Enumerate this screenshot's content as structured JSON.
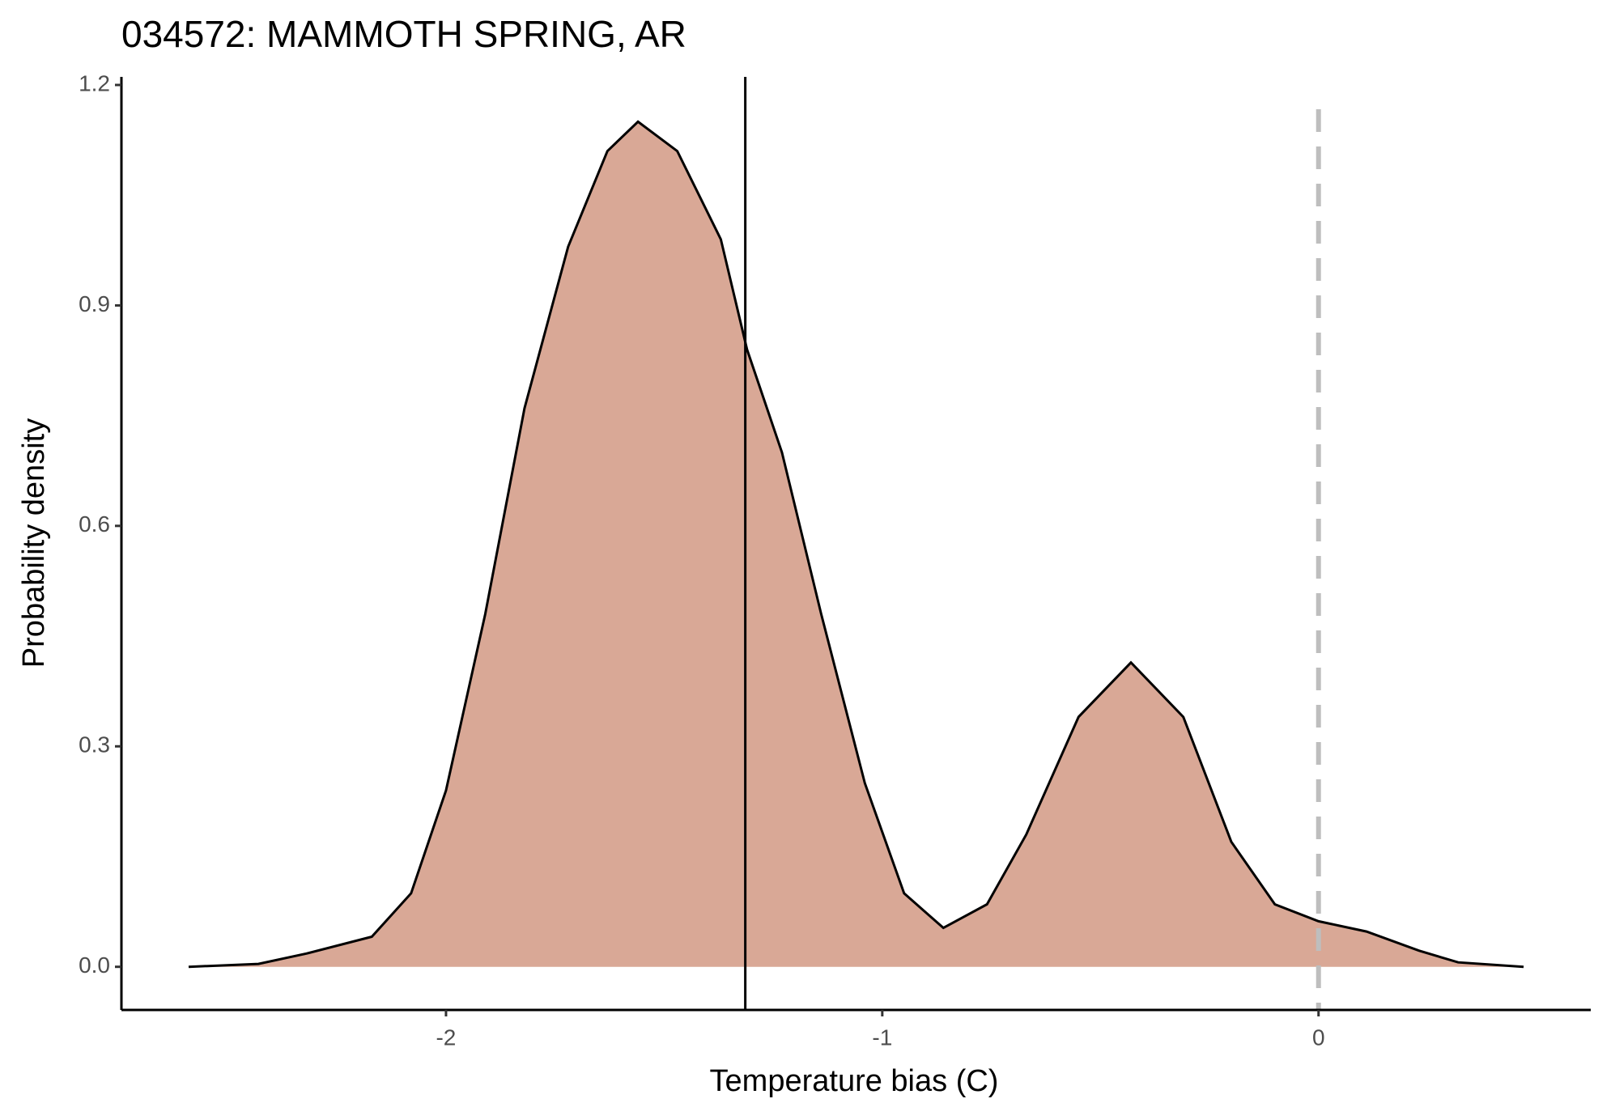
{
  "chart_data": {
    "type": "area",
    "title": "034572: MAMMOTH SPRING, AR",
    "x_label": "Temperature bias (C)",
    "y_label": "Probability density",
    "x": [
      -2.59,
      -2.43,
      -2.32,
      -2.17,
      -2.08,
      -2.0,
      -1.91,
      -1.82,
      -1.72,
      -1.63,
      -1.56,
      -1.47,
      -1.37,
      -1.31,
      -1.23,
      -1.14,
      -1.04,
      -0.95,
      -0.86,
      -0.76,
      -0.67,
      -0.55,
      -0.43,
      -0.31,
      -0.2,
      -0.1,
      0,
      0.11,
      0.23,
      0.32,
      0.47
    ],
    "values": [
      0,
      0.004,
      0.018,
      0.041,
      0.1,
      0.24,
      0.48,
      0.76,
      0.98,
      1.11,
      1.15,
      1.11,
      0.99,
      0.84,
      0.7,
      0.48,
      0.25,
      0.1,
      0.053,
      0.085,
      0.18,
      0.34,
      0.414,
      0.34,
      0.17,
      0.085,
      0.062,
      0.048,
      0.022,
      0.006,
      0
    ],
    "fill": "#d9a896",
    "color": "#000000",
    "xlim": [
      -2.744,
      0.624
    ],
    "xticks": [
      -2,
      -1,
      0
    ],
    "ylim": [
      -0.0587,
      1.211
    ],
    "yticks": [
      {
        "value": 0,
        "label": "0.0"
      },
      0.3,
      0.6,
      0.9,
      {
        "value": 1.2,
        "label": "1.2"
      }
    ],
    "grid": false,
    "vlines": [
      {
        "x": -1.314,
        "color": "#000000",
        "dashed": false
      },
      {
        "x": 0,
        "color": "#bebebe",
        "dashed": true
      }
    ]
  }
}
